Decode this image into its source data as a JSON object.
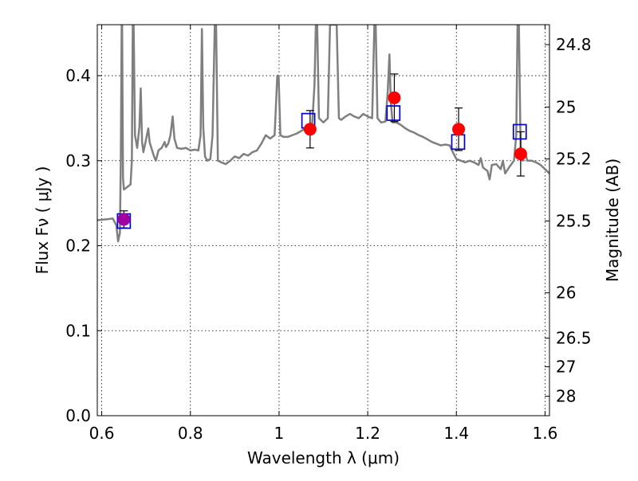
{
  "chart_data": {
    "type": "scatter",
    "xlabel": "Wavelength  λ (μm)",
    "ylabel": "Flux  Fν  ( μJy )",
    "ylabel_right": "Magnitude (AB)",
    "xlim": [
      0.59,
      1.61
    ],
    "ylim": [
      0.0,
      0.46
    ],
    "grid": true,
    "x_ticks": [
      0.6,
      0.8,
      1.0,
      1.2,
      1.4,
      1.6
    ],
    "x_tick_labels": [
      "0.6",
      "0.8",
      "1",
      "1.2",
      "1.4",
      "1.6"
    ],
    "y_ticks": [
      0.0,
      0.1,
      0.2,
      0.3,
      0.4
    ],
    "y_tick_labels": [
      "0.0",
      "0.1",
      "0.2",
      "0.3",
      "0.4"
    ],
    "right_ticks": [
      24.8,
      25.0,
      25.2,
      25.5,
      26.0,
      26.5,
      27.0,
      28.0
    ],
    "right_tick_labels": [
      "24.8",
      "25",
      "25.2",
      "25.5",
      "26",
      "26.5",
      "27",
      "28"
    ],
    "colors": {
      "model": "#7f7f7f",
      "observed": "#ff0000",
      "model_band": "#0000cc",
      "first_point": "#a000a0",
      "errorbar": "#000000"
    },
    "series": [
      {
        "role": "observed",
        "points": [
          {
            "x": 0.65,
            "y": 0.231,
            "err": 0.01
          },
          {
            "x": 1.07,
            "y": 0.337,
            "err": 0.022
          },
          {
            "x": 1.26,
            "y": 0.374,
            "err": 0.028
          },
          {
            "x": 1.405,
            "y": 0.337,
            "err": 0.025
          },
          {
            "x": 1.545,
            "y": 0.308,
            "err": 0.026
          }
        ]
      },
      {
        "role": "model_band",
        "points": [
          {
            "x": 0.65,
            "y": 0.229
          },
          {
            "x": 1.066,
            "y": 0.347
          },
          {
            "x": 1.258,
            "y": 0.356
          },
          {
            "x": 1.404,
            "y": 0.322
          },
          {
            "x": 1.543,
            "y": 0.334
          }
        ]
      },
      {
        "role": "model",
        "points": [
          [
            0.59,
            0.23
          ],
          [
            0.61,
            0.231
          ],
          [
            0.625,
            0.232
          ],
          [
            0.633,
            0.224
          ],
          [
            0.637,
            0.205
          ],
          [
            0.641,
            0.215
          ],
          [
            0.643,
            0.3
          ],
          [
            0.645,
            0.46
          ],
          [
            0.646,
            0.46
          ],
          [
            0.648,
            0.28
          ],
          [
            0.65,
            0.266
          ],
          [
            0.655,
            0.268
          ],
          [
            0.66,
            0.27
          ],
          [
            0.665,
            0.272
          ],
          [
            0.668,
            0.3
          ],
          [
            0.67,
            0.46
          ],
          [
            0.672,
            0.46
          ],
          [
            0.675,
            0.33
          ],
          [
            0.68,
            0.315
          ],
          [
            0.685,
            0.34
          ],
          [
            0.688,
            0.385
          ],
          [
            0.691,
            0.322
          ],
          [
            0.694,
            0.31
          ],
          [
            0.7,
            0.325
          ],
          [
            0.705,
            0.338
          ],
          [
            0.708,
            0.322
          ],
          [
            0.712,
            0.315
          ],
          [
            0.718,
            0.305
          ],
          [
            0.722,
            0.3
          ],
          [
            0.728,
            0.312
          ],
          [
            0.735,
            0.315
          ],
          [
            0.742,
            0.322
          ],
          [
            0.745,
            0.316
          ],
          [
            0.75,
            0.32
          ],
          [
            0.755,
            0.33
          ],
          [
            0.76,
            0.352
          ],
          [
            0.764,
            0.326
          ],
          [
            0.77,
            0.315
          ],
          [
            0.78,
            0.314
          ],
          [
            0.79,
            0.315
          ],
          [
            0.8,
            0.312
          ],
          [
            0.81,
            0.313
          ],
          [
            0.818,
            0.312
          ],
          [
            0.823,
            0.33
          ],
          [
            0.826,
            0.455
          ],
          [
            0.829,
            0.34
          ],
          [
            0.833,
            0.305
          ],
          [
            0.838,
            0.3
          ],
          [
            0.845,
            0.302
          ],
          [
            0.85,
            0.33
          ],
          [
            0.855,
            0.46
          ],
          [
            0.858,
            0.46
          ],
          [
            0.862,
            0.3
          ],
          [
            0.87,
            0.298
          ],
          [
            0.88,
            0.296
          ],
          [
            0.89,
            0.3
          ],
          [
            0.9,
            0.305
          ],
          [
            0.91,
            0.303
          ],
          [
            0.92,
            0.308
          ],
          [
            0.93,
            0.306
          ],
          [
            0.94,
            0.31
          ],
          [
            0.95,
            0.312
          ],
          [
            0.96,
            0.32
          ],
          [
            0.97,
            0.33
          ],
          [
            0.98,
            0.326
          ],
          [
            0.99,
            0.33
          ],
          [
            0.996,
            0.4
          ],
          [
            0.999,
            0.4
          ],
          [
            1.003,
            0.33
          ],
          [
            1.01,
            0.328
          ],
          [
            1.02,
            0.328
          ],
          [
            1.03,
            0.33
          ],
          [
            1.04,
            0.332
          ],
          [
            1.05,
            0.335
          ],
          [
            1.06,
            0.338
          ],
          [
            1.07,
            0.34
          ],
          [
            1.075,
            0.345
          ],
          [
            1.08,
            0.39
          ],
          [
            1.083,
            0.46
          ],
          [
            1.086,
            0.46
          ],
          [
            1.09,
            0.35
          ],
          [
            1.1,
            0.345
          ],
          [
            1.11,
            0.35
          ],
          [
            1.115,
            0.46
          ],
          [
            1.12,
            0.46
          ],
          [
            1.126,
            0.46
          ],
          [
            1.13,
            0.46
          ],
          [
            1.135,
            0.35
          ],
          [
            1.14,
            0.348
          ],
          [
            1.15,
            0.352
          ],
          [
            1.16,
            0.355
          ],
          [
            1.17,
            0.352
          ],
          [
            1.18,
            0.35
          ],
          [
            1.19,
            0.355
          ],
          [
            1.2,
            0.352
          ],
          [
            1.21,
            0.35
          ],
          [
            1.215,
            0.46
          ],
          [
            1.218,
            0.46
          ],
          [
            1.222,
            0.35
          ],
          [
            1.23,
            0.345
          ],
          [
            1.24,
            0.346
          ],
          [
            1.245,
            0.38
          ],
          [
            1.249,
            0.425
          ],
          [
            1.252,
            0.37
          ],
          [
            1.256,
            0.345
          ],
          [
            1.265,
            0.345
          ],
          [
            1.275,
            0.342
          ],
          [
            1.285,
            0.338
          ],
          [
            1.295,
            0.335
          ],
          [
            1.305,
            0.333
          ],
          [
            1.315,
            0.33
          ],
          [
            1.325,
            0.328
          ],
          [
            1.335,
            0.325
          ],
          [
            1.345,
            0.322
          ],
          [
            1.355,
            0.32
          ],
          [
            1.365,
            0.318
          ],
          [
            1.375,
            0.319
          ],
          [
            1.385,
            0.318
          ],
          [
            1.392,
            0.31
          ],
          [
            1.4,
            0.302
          ],
          [
            1.41,
            0.3
          ],
          [
            1.42,
            0.298
          ],
          [
            1.43,
            0.3
          ],
          [
            1.44,
            0.298
          ],
          [
            1.45,
            0.295
          ],
          [
            1.455,
            0.303
          ],
          [
            1.46,
            0.292
          ],
          [
            1.47,
            0.288
          ],
          [
            1.475,
            0.278
          ],
          [
            1.48,
            0.295
          ],
          [
            1.49,
            0.296
          ],
          [
            1.5,
            0.29
          ],
          [
            1.505,
            0.3
          ],
          [
            1.51,
            0.285
          ],
          [
            1.52,
            0.293
          ],
          [
            1.53,
            0.3
          ],
          [
            1.535,
            0.33
          ],
          [
            1.538,
            0.46
          ],
          [
            1.541,
            0.46
          ],
          [
            1.545,
            0.31
          ],
          [
            1.55,
            0.3
          ],
          [
            1.555,
            0.31
          ],
          [
            1.56,
            0.3
          ],
          [
            1.57,
            0.3
          ],
          [
            1.58,
            0.298
          ],
          [
            1.59,
            0.295
          ],
          [
            1.6,
            0.29
          ],
          [
            1.61,
            0.285
          ]
        ]
      }
    ]
  }
}
